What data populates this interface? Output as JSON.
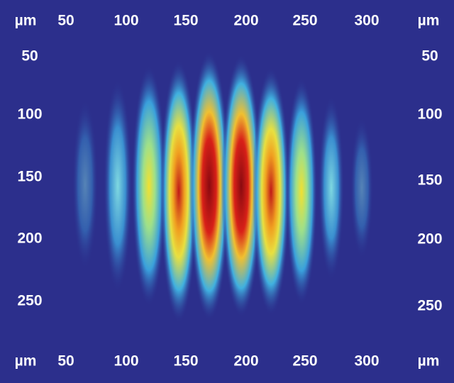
{
  "top_axis": {
    "unit_left": "µm",
    "labels": [
      "50",
      "100",
      "150",
      "200",
      "250",
      "300"
    ],
    "unit_right": "µm"
  },
  "bottom_axis": {
    "unit_left": "µm",
    "labels": [
      "50",
      "100",
      "150",
      "200",
      "250",
      "300"
    ],
    "unit_right": "µm"
  },
  "left_axis": {
    "labels": [
      "50",
      "100",
      "150",
      "200",
      "250"
    ]
  },
  "right_axis": {
    "labels": [
      "50",
      "100",
      "150",
      "200",
      "250"
    ]
  }
}
